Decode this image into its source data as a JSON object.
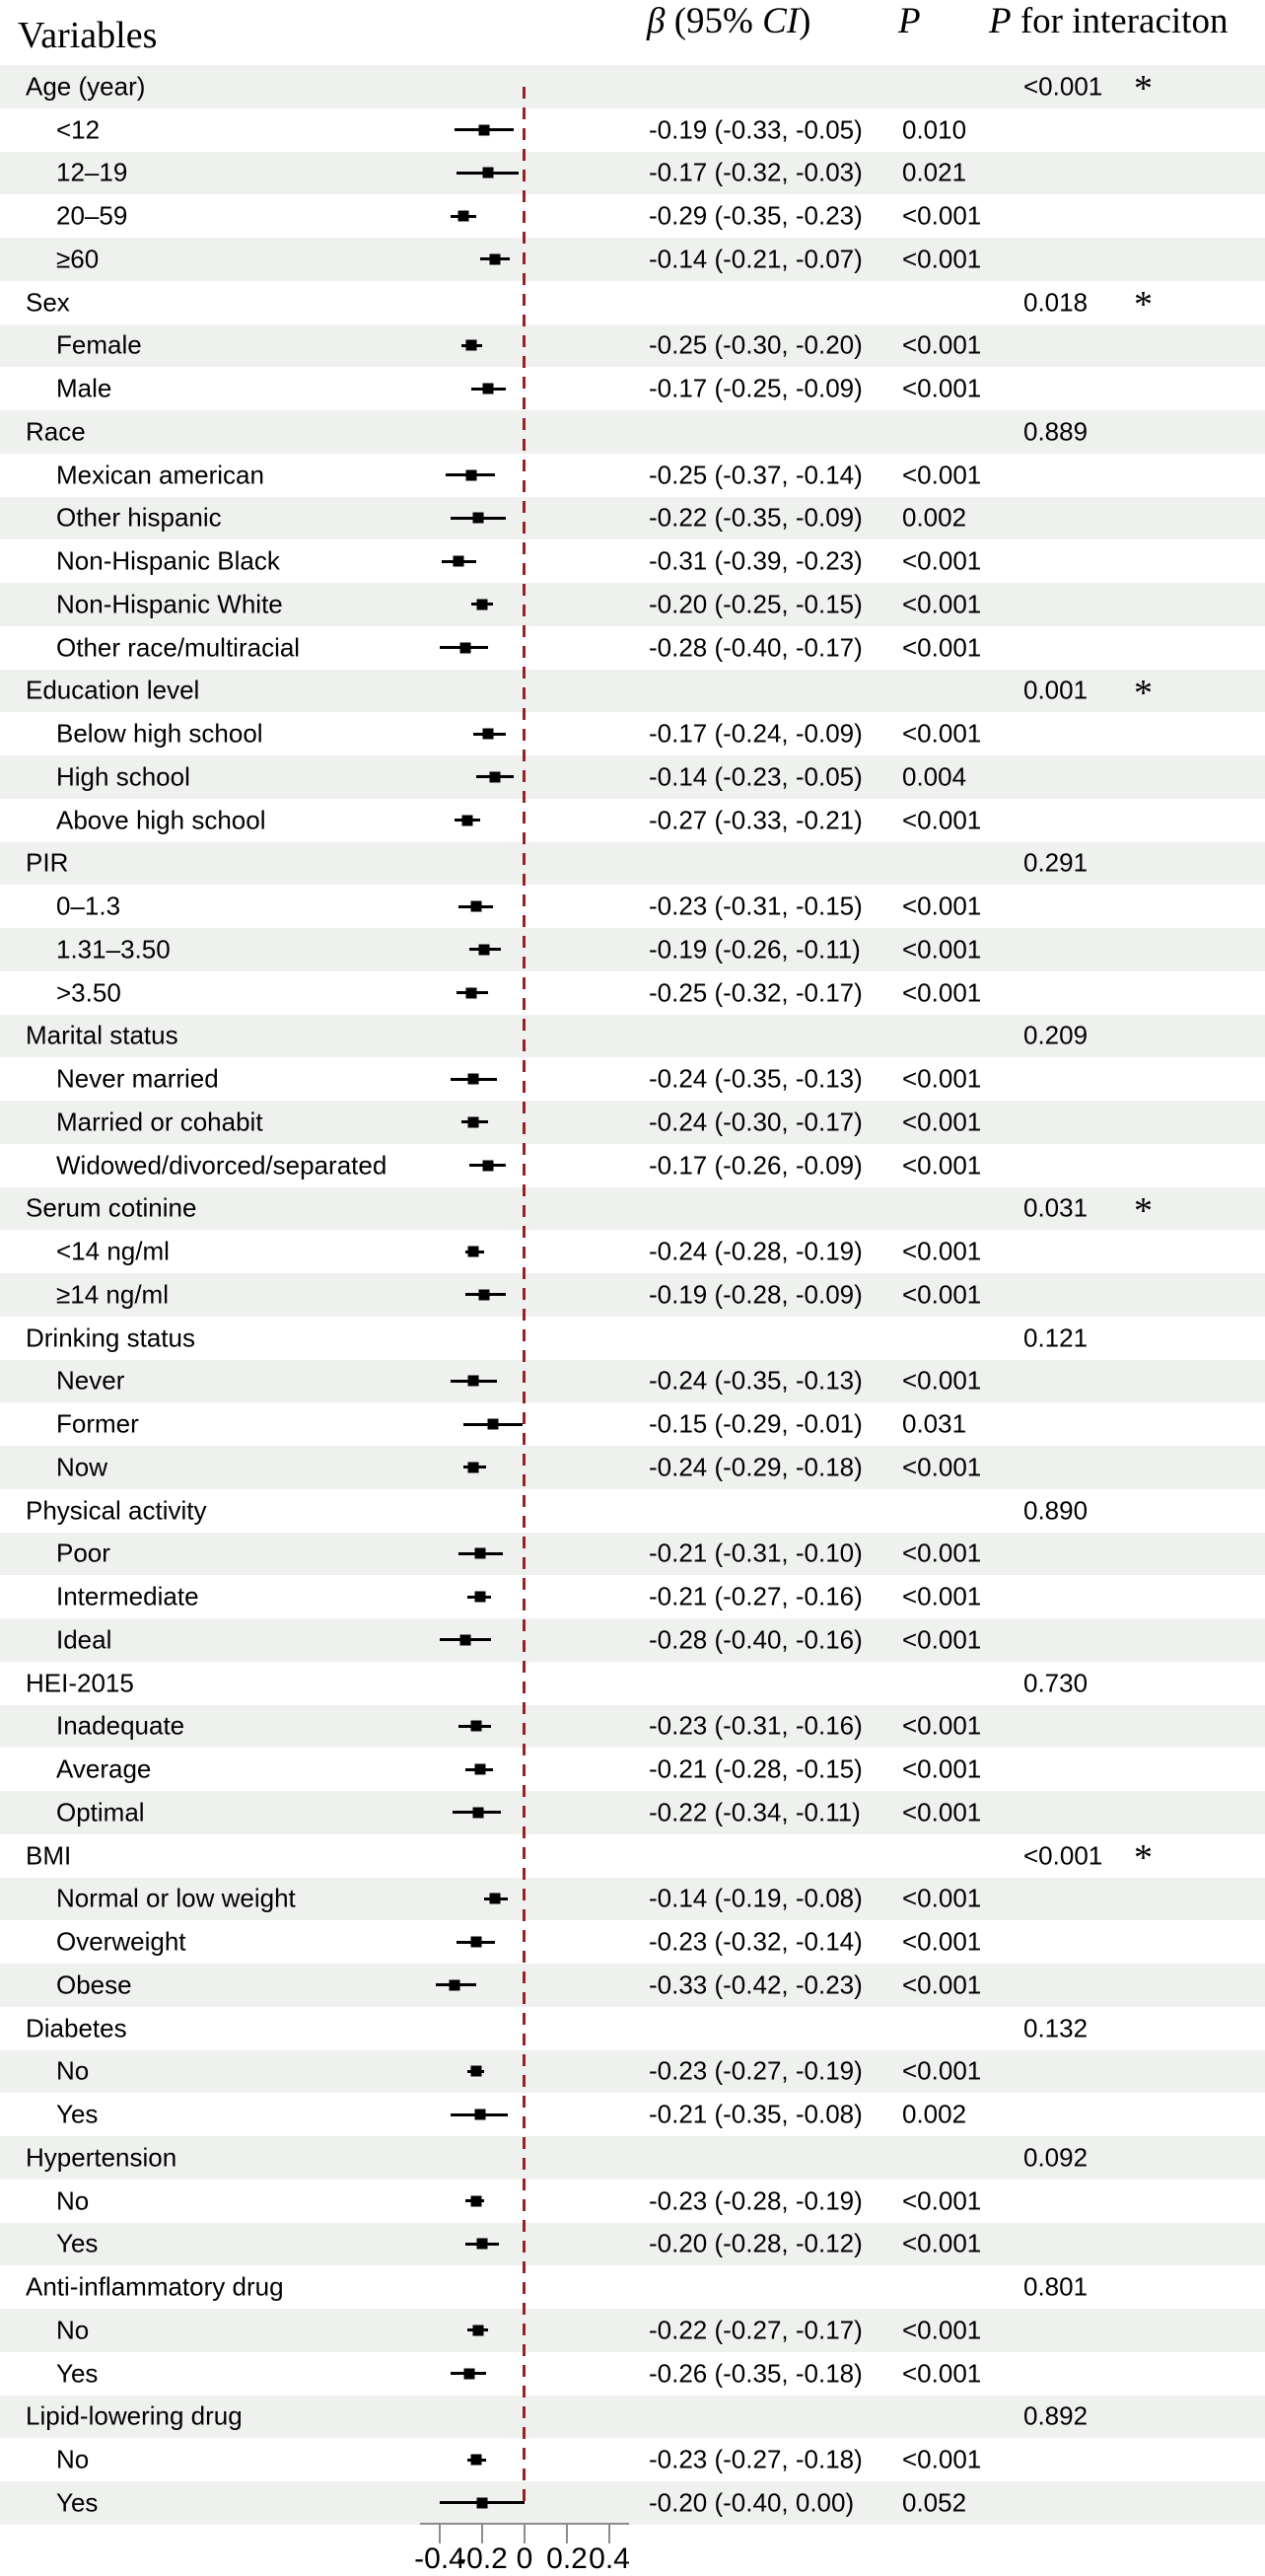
{
  "header": {
    "variables": "Variables",
    "beta_symbol": "β",
    "ci_mid": " (95% ",
    "ci_word": "CI",
    "ci_close": ")",
    "p": "P",
    "p_interaction_prefix": "P",
    "p_interaction_rest": " for interaciton"
  },
  "colors": {
    "row_shade": "#eef1ee",
    "zero_line": "#9e1f1f",
    "axis": "#8c8c8c",
    "marker": "#000000",
    "text": "#000000"
  },
  "chart_data": {
    "type": "scatter",
    "subtype": "forest-plot",
    "title": "",
    "xlabel": "",
    "ylabel": "",
    "xlim": [
      -0.5,
      0.5
    ],
    "zero_reference": 0,
    "grid": false,
    "x_tick_values": [
      -0.4,
      -0.2,
      0,
      0.2,
      0.4
    ],
    "x_tick_labels": [
      "-0.4",
      "-0.2",
      "0",
      "0.2",
      "0.4"
    ],
    "rows": [
      {
        "label": "Age (year)",
        "indent": false,
        "beta": null,
        "lo": null,
        "hi": null,
        "beta_text": "",
        "p": "",
        "p_interaction": "<0.001",
        "star": "*"
      },
      {
        "label": "<12",
        "indent": true,
        "beta": -0.19,
        "lo": -0.33,
        "hi": -0.05,
        "beta_text": "-0.19 (-0.33, -0.05)",
        "p": "0.010",
        "p_interaction": "",
        "star": ""
      },
      {
        "label": "12–19",
        "indent": true,
        "beta": -0.17,
        "lo": -0.32,
        "hi": -0.03,
        "beta_text": "-0.17 (-0.32, -0.03)",
        "p": "0.021",
        "p_interaction": "",
        "star": ""
      },
      {
        "label": "20–59",
        "indent": true,
        "beta": -0.29,
        "lo": -0.35,
        "hi": -0.23,
        "beta_text": "-0.29 (-0.35, -0.23)",
        "p": "<0.001",
        "p_interaction": "",
        "star": ""
      },
      {
        "label": "≥60",
        "indent": true,
        "beta": -0.14,
        "lo": -0.21,
        "hi": -0.07,
        "beta_text": "-0.14 (-0.21, -0.07)",
        "p": "<0.001",
        "p_interaction": "",
        "star": ""
      },
      {
        "label": "Sex",
        "indent": false,
        "beta": null,
        "lo": null,
        "hi": null,
        "beta_text": "",
        "p": "",
        "p_interaction": "0.018",
        "star": "*"
      },
      {
        "label": "Female",
        "indent": true,
        "beta": -0.25,
        "lo": -0.3,
        "hi": -0.2,
        "beta_text": "-0.25 (-0.30, -0.20)",
        "p": "<0.001",
        "p_interaction": "",
        "star": ""
      },
      {
        "label": "Male",
        "indent": true,
        "beta": -0.17,
        "lo": -0.25,
        "hi": -0.09,
        "beta_text": "-0.17 (-0.25, -0.09)",
        "p": "<0.001",
        "p_interaction": "",
        "star": ""
      },
      {
        "label": "Race",
        "indent": false,
        "beta": null,
        "lo": null,
        "hi": null,
        "beta_text": "",
        "p": "",
        "p_interaction": "0.889",
        "star": ""
      },
      {
        "label": "Mexican american",
        "indent": true,
        "beta": -0.25,
        "lo": -0.37,
        "hi": -0.14,
        "beta_text": "-0.25 (-0.37, -0.14)",
        "p": "<0.001",
        "p_interaction": "",
        "star": ""
      },
      {
        "label": "Other hispanic",
        "indent": true,
        "beta": -0.22,
        "lo": -0.35,
        "hi": -0.09,
        "beta_text": "-0.22 (-0.35, -0.09)",
        "p": "0.002",
        "p_interaction": "",
        "star": ""
      },
      {
        "label": "Non-Hispanic Black",
        "indent": true,
        "beta": -0.31,
        "lo": -0.39,
        "hi": -0.23,
        "beta_text": "-0.31 (-0.39, -0.23)",
        "p": "<0.001",
        "p_interaction": "",
        "star": ""
      },
      {
        "label": "Non-Hispanic White",
        "indent": true,
        "beta": -0.2,
        "lo": -0.25,
        "hi": -0.15,
        "beta_text": "-0.20 (-0.25, -0.15)",
        "p": "<0.001",
        "p_interaction": "",
        "star": ""
      },
      {
        "label": "Other race/multiracial",
        "indent": true,
        "beta": -0.28,
        "lo": -0.4,
        "hi": -0.17,
        "beta_text": "-0.28 (-0.40, -0.17)",
        "p": "<0.001",
        "p_interaction": "",
        "star": ""
      },
      {
        "label": "Education level",
        "indent": false,
        "beta": null,
        "lo": null,
        "hi": null,
        "beta_text": "",
        "p": "",
        "p_interaction": "0.001",
        "star": "*"
      },
      {
        "label": "Below high school",
        "indent": true,
        "beta": -0.17,
        "lo": -0.24,
        "hi": -0.09,
        "beta_text": "-0.17 (-0.24, -0.09)",
        "p": "<0.001",
        "p_interaction": "",
        "star": ""
      },
      {
        "label": "High school",
        "indent": true,
        "beta": -0.14,
        "lo": -0.23,
        "hi": -0.05,
        "beta_text": "-0.14 (-0.23, -0.05)",
        "p": "0.004",
        "p_interaction": "",
        "star": ""
      },
      {
        "label": "Above high school",
        "indent": true,
        "beta": -0.27,
        "lo": -0.33,
        "hi": -0.21,
        "beta_text": "-0.27 (-0.33, -0.21)",
        "p": "<0.001",
        "p_interaction": "",
        "star": ""
      },
      {
        "label": "PIR",
        "indent": false,
        "beta": null,
        "lo": null,
        "hi": null,
        "beta_text": "",
        "p": "",
        "p_interaction": "0.291",
        "star": ""
      },
      {
        "label": "0–1.3",
        "indent": true,
        "beta": -0.23,
        "lo": -0.31,
        "hi": -0.15,
        "beta_text": "-0.23 (-0.31, -0.15)",
        "p": "<0.001",
        "p_interaction": "",
        "star": ""
      },
      {
        "label": "1.31–3.50",
        "indent": true,
        "beta": -0.19,
        "lo": -0.26,
        "hi": -0.11,
        "beta_text": "-0.19 (-0.26, -0.11)",
        "p": "<0.001",
        "p_interaction": "",
        "star": ""
      },
      {
        "label": ">3.50",
        "indent": true,
        "beta": -0.25,
        "lo": -0.32,
        "hi": -0.17,
        "beta_text": "-0.25 (-0.32, -0.17)",
        "p": "<0.001",
        "p_interaction": "",
        "star": ""
      },
      {
        "label": "Marital status",
        "indent": false,
        "beta": null,
        "lo": null,
        "hi": null,
        "beta_text": "",
        "p": "",
        "p_interaction": "0.209",
        "star": ""
      },
      {
        "label": "Never married",
        "indent": true,
        "beta": -0.24,
        "lo": -0.35,
        "hi": -0.13,
        "beta_text": "-0.24 (-0.35, -0.13)",
        "p": "<0.001",
        "p_interaction": "",
        "star": ""
      },
      {
        "label": "Married or cohabit",
        "indent": true,
        "beta": -0.24,
        "lo": -0.3,
        "hi": -0.17,
        "beta_text": "-0.24 (-0.30, -0.17)",
        "p": "<0.001",
        "p_interaction": "",
        "star": ""
      },
      {
        "label": "Widowed/divorced/separated",
        "indent": true,
        "beta": -0.17,
        "lo": -0.26,
        "hi": -0.09,
        "beta_text": "-0.17 (-0.26, -0.09)",
        "p": "<0.001",
        "p_interaction": "",
        "star": ""
      },
      {
        "label": "Serum cotinine",
        "indent": false,
        "beta": null,
        "lo": null,
        "hi": null,
        "beta_text": "",
        "p": "",
        "p_interaction": "0.031",
        "star": "*"
      },
      {
        "label": "<14 ng/ml",
        "indent": true,
        "beta": -0.24,
        "lo": -0.28,
        "hi": -0.19,
        "beta_text": "-0.24 (-0.28, -0.19)",
        "p": "<0.001",
        "p_interaction": "",
        "star": ""
      },
      {
        "label": "≥14 ng/ml",
        "indent": true,
        "beta": -0.19,
        "lo": -0.28,
        "hi": -0.09,
        "beta_text": "-0.19 (-0.28, -0.09)",
        "p": "<0.001",
        "p_interaction": "",
        "star": ""
      },
      {
        "label": "Drinking status",
        "indent": false,
        "beta": null,
        "lo": null,
        "hi": null,
        "beta_text": "",
        "p": "",
        "p_interaction": "0.121",
        "star": ""
      },
      {
        "label": "Never",
        "indent": true,
        "beta": -0.24,
        "lo": -0.35,
        "hi": -0.13,
        "beta_text": "-0.24 (-0.35, -0.13)",
        "p": "<0.001",
        "p_interaction": "",
        "star": ""
      },
      {
        "label": "Former",
        "indent": true,
        "beta": -0.15,
        "lo": -0.29,
        "hi": -0.01,
        "beta_text": "-0.15 (-0.29, -0.01)",
        "p": "0.031",
        "p_interaction": "",
        "star": ""
      },
      {
        "label": "Now",
        "indent": true,
        "beta": -0.24,
        "lo": -0.29,
        "hi": -0.18,
        "beta_text": "-0.24 (-0.29, -0.18)",
        "p": "<0.001",
        "p_interaction": "",
        "star": ""
      },
      {
        "label": "Physical activity",
        "indent": false,
        "beta": null,
        "lo": null,
        "hi": null,
        "beta_text": "",
        "p": "",
        "p_interaction": "0.890",
        "star": ""
      },
      {
        "label": "Poor",
        "indent": true,
        "beta": -0.21,
        "lo": -0.31,
        "hi": -0.1,
        "beta_text": "-0.21 (-0.31, -0.10)",
        "p": "<0.001",
        "p_interaction": "",
        "star": ""
      },
      {
        "label": "Intermediate",
        "indent": true,
        "beta": -0.21,
        "lo": -0.27,
        "hi": -0.16,
        "beta_text": "-0.21 (-0.27, -0.16)",
        "p": "<0.001",
        "p_interaction": "",
        "star": ""
      },
      {
        "label": "Ideal",
        "indent": true,
        "beta": -0.28,
        "lo": -0.4,
        "hi": -0.16,
        "beta_text": "-0.28 (-0.40, -0.16)",
        "p": "<0.001",
        "p_interaction": "",
        "star": ""
      },
      {
        "label": "HEI-2015",
        "indent": false,
        "beta": null,
        "lo": null,
        "hi": null,
        "beta_text": "",
        "p": "",
        "p_interaction": "0.730",
        "star": ""
      },
      {
        "label": "Inadequate",
        "indent": true,
        "beta": -0.23,
        "lo": -0.31,
        "hi": -0.16,
        "beta_text": "-0.23 (-0.31, -0.16)",
        "p": "<0.001",
        "p_interaction": "",
        "star": ""
      },
      {
        "label": "Average",
        "indent": true,
        "beta": -0.21,
        "lo": -0.28,
        "hi": -0.15,
        "beta_text": "-0.21 (-0.28, -0.15)",
        "p": "<0.001",
        "p_interaction": "",
        "star": ""
      },
      {
        "label": "Optimal",
        "indent": true,
        "beta": -0.22,
        "lo": -0.34,
        "hi": -0.11,
        "beta_text": "-0.22 (-0.34, -0.11)",
        "p": "<0.001",
        "p_interaction": "",
        "star": ""
      },
      {
        "label": "BMI",
        "indent": false,
        "beta": null,
        "lo": null,
        "hi": null,
        "beta_text": "",
        "p": "",
        "p_interaction": "<0.001",
        "star": "*"
      },
      {
        "label": "Normal or low weight",
        "indent": true,
        "beta": -0.14,
        "lo": -0.19,
        "hi": -0.08,
        "beta_text": "-0.14 (-0.19, -0.08)",
        "p": "<0.001",
        "p_interaction": "",
        "star": ""
      },
      {
        "label": "Overweight",
        "indent": true,
        "beta": -0.23,
        "lo": -0.32,
        "hi": -0.14,
        "beta_text": "-0.23 (-0.32, -0.14)",
        "p": "<0.001",
        "p_interaction": "",
        "star": ""
      },
      {
        "label": "Obese",
        "indent": true,
        "beta": -0.33,
        "lo": -0.42,
        "hi": -0.23,
        "beta_text": "-0.33 (-0.42, -0.23)",
        "p": "<0.001",
        "p_interaction": "",
        "star": ""
      },
      {
        "label": "Diabetes",
        "indent": false,
        "beta": null,
        "lo": null,
        "hi": null,
        "beta_text": "",
        "p": "",
        "p_interaction": "0.132",
        "star": ""
      },
      {
        "label": "No",
        "indent": true,
        "beta": -0.23,
        "lo": -0.27,
        "hi": -0.19,
        "beta_text": "-0.23 (-0.27, -0.19)",
        "p": "<0.001",
        "p_interaction": "",
        "star": ""
      },
      {
        "label": "Yes",
        "indent": true,
        "beta": -0.21,
        "lo": -0.35,
        "hi": -0.08,
        "beta_text": "-0.21 (-0.35, -0.08)",
        "p": "0.002",
        "p_interaction": "",
        "star": ""
      },
      {
        "label": "Hypertension",
        "indent": false,
        "beta": null,
        "lo": null,
        "hi": null,
        "beta_text": "",
        "p": "",
        "p_interaction": "0.092",
        "star": ""
      },
      {
        "label": "No",
        "indent": true,
        "beta": -0.23,
        "lo": -0.28,
        "hi": -0.19,
        "beta_text": "-0.23 (-0.28, -0.19)",
        "p": "<0.001",
        "p_interaction": "",
        "star": ""
      },
      {
        "label": "Yes",
        "indent": true,
        "beta": -0.2,
        "lo": -0.28,
        "hi": -0.12,
        "beta_text": "-0.20 (-0.28, -0.12)",
        "p": "<0.001",
        "p_interaction": "",
        "star": ""
      },
      {
        "label": "Anti-inflammatory drug",
        "indent": false,
        "beta": null,
        "lo": null,
        "hi": null,
        "beta_text": "",
        "p": "",
        "p_interaction": "0.801",
        "star": ""
      },
      {
        "label": "No",
        "indent": true,
        "beta": -0.22,
        "lo": -0.27,
        "hi": -0.17,
        "beta_text": "-0.22 (-0.27, -0.17)",
        "p": "<0.001",
        "p_interaction": "",
        "star": ""
      },
      {
        "label": "Yes",
        "indent": true,
        "beta": -0.26,
        "lo": -0.35,
        "hi": -0.18,
        "beta_text": "-0.26 (-0.35, -0.18)",
        "p": "<0.001",
        "p_interaction": "",
        "star": ""
      },
      {
        "label": "Lipid-lowering drug",
        "indent": false,
        "beta": null,
        "lo": null,
        "hi": null,
        "beta_text": "",
        "p": "",
        "p_interaction": "0.892",
        "star": ""
      },
      {
        "label": "No",
        "indent": true,
        "beta": -0.23,
        "lo": -0.27,
        "hi": -0.18,
        "beta_text": "-0.23 (-0.27, -0.18)",
        "p": "<0.001",
        "p_interaction": "",
        "star": ""
      },
      {
        "label": "Yes",
        "indent": true,
        "beta": -0.2,
        "lo": -0.4,
        "hi": 0.0,
        "beta_text": "-0.20 (-0.40, 0.00)",
        "p": "0.052",
        "p_interaction": "",
        "star": ""
      }
    ]
  }
}
